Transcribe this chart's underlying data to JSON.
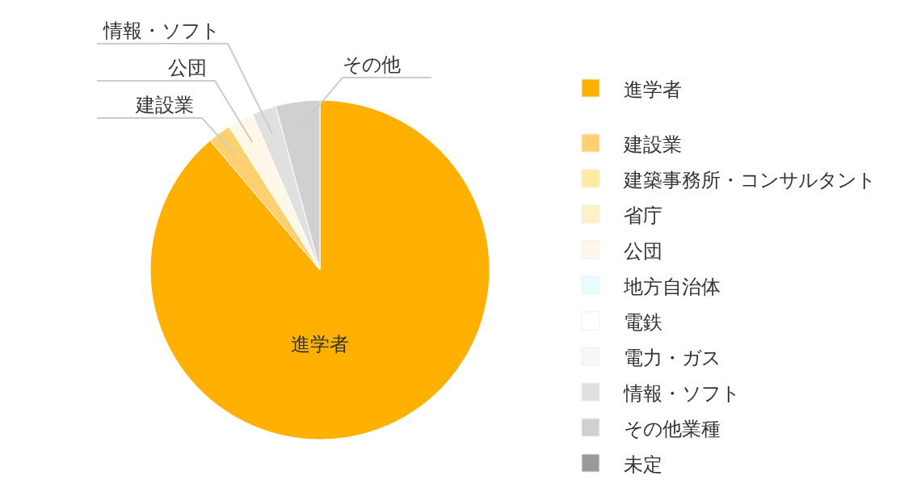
{
  "chart_data": {
    "type": "pie",
    "categories": [
      "進学者",
      "建設業",
      "建築事務所・コンサルタント",
      "省庁",
      "公団",
      "地方自治体",
      "電鉄",
      "電力・ガス",
      "情報・ソフト",
      "その他業種",
      "未定"
    ],
    "values": [
      88.8,
      2.2,
      0,
      0,
      2.5,
      0,
      0,
      0,
      2.3,
      4.2,
      0
    ],
    "colors": [
      "#ffb000",
      "#ffd070",
      "#ffeaa0",
      "#fff0c8",
      "#fff8e8",
      "#e8fcff",
      "#ffffff",
      "#f8f8f8",
      "#e0e0e0",
      "#d0d0d0",
      "#999999"
    ],
    "annotations": [
      {
        "text": "進学者",
        "x": "進学者"
      },
      {
        "text": "建設業",
        "x": "建設業"
      },
      {
        "text": "公団",
        "x": "公団"
      },
      {
        "text": "情報・ソフト",
        "x": "情報・ソフト"
      },
      {
        "text": "その他",
        "x": "その他業種"
      }
    ],
    "legend": "right"
  }
}
